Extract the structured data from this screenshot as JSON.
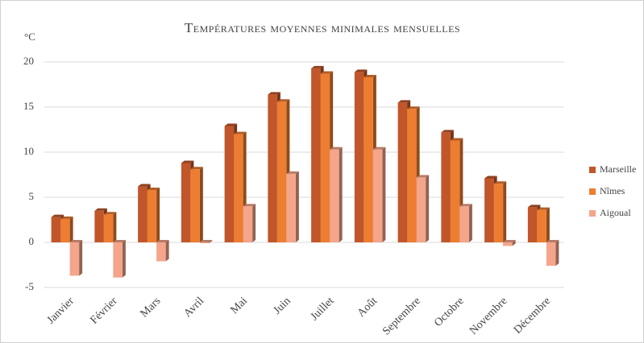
{
  "chart_data": {
    "type": "bar3d",
    "title": "Températures moyennes minimales mensuelles",
    "y_label": "°C",
    "categories": [
      "Janvier",
      "Février",
      "Mars",
      "Avril",
      "Mai",
      "Juin",
      "Juillet",
      "Août",
      "Septembre",
      "Octobre",
      "Novembre",
      "Décembre"
    ],
    "series": [
      {
        "name": "Marseille",
        "color": "#c0562a",
        "values": [
          2.8,
          3.5,
          6.2,
          8.8,
          12.9,
          16.4,
          19.3,
          18.9,
          15.5,
          12.2,
          7.1,
          3.9
        ]
      },
      {
        "name": "Nîmes",
        "color": "#ed7d31",
        "values": [
          2.6,
          3.1,
          5.8,
          8.1,
          12.0,
          15.6,
          18.7,
          18.3,
          14.8,
          11.3,
          6.5,
          3.6
        ]
      },
      {
        "name": "Aigoual",
        "color": "#f4a58a",
        "values": [
          -3.7,
          -3.9,
          -2.1,
          -0.1,
          4.0,
          7.6,
          10.3,
          10.3,
          7.2,
          4.0,
          -0.4,
          -2.6
        ]
      }
    ],
    "ylim": [
      -5,
      20
    ],
    "yticks": [
      -5,
      0,
      5,
      10,
      15,
      20
    ],
    "grid": true,
    "legend": "right"
  }
}
